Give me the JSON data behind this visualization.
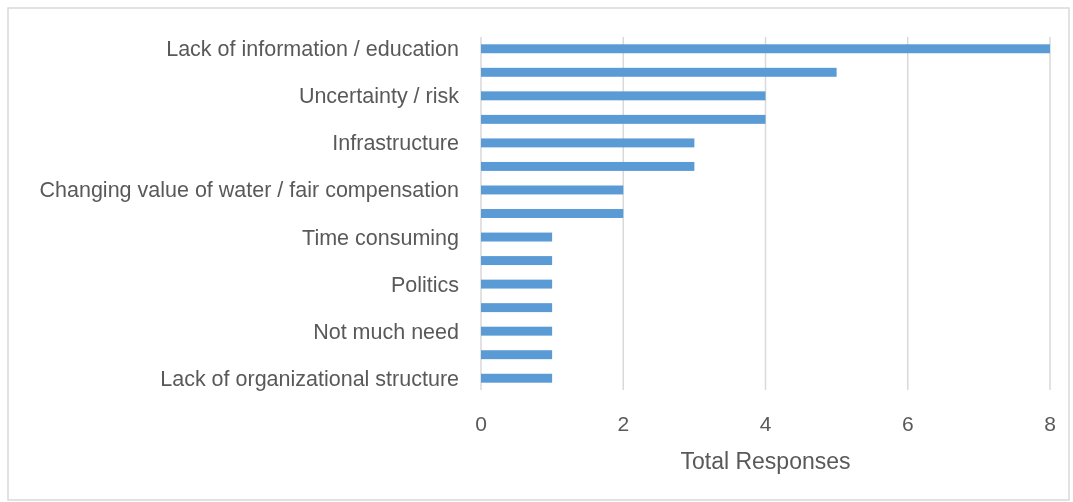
{
  "chart_data": {
    "type": "bar",
    "orientation": "horizontal",
    "categories": [
      "Lack of information / education",
      null,
      "Uncertainty / risk",
      null,
      "Infrastructure",
      null,
      "Changing value of water / fair compensation",
      null,
      "Time consuming",
      null,
      "Politics",
      null,
      "Not much need",
      null,
      "Lack of organizational structure"
    ],
    "values": [
      8,
      5,
      4,
      4,
      3,
      3,
      2,
      2,
      1,
      1,
      1,
      1,
      1,
      1,
      1
    ],
    "color": "#5b9bd5",
    "xlabel": "Total Responses",
    "xlim": [
      0,
      8
    ],
    "xticks": [
      0,
      2,
      4,
      6,
      8
    ],
    "grid": "x"
  }
}
